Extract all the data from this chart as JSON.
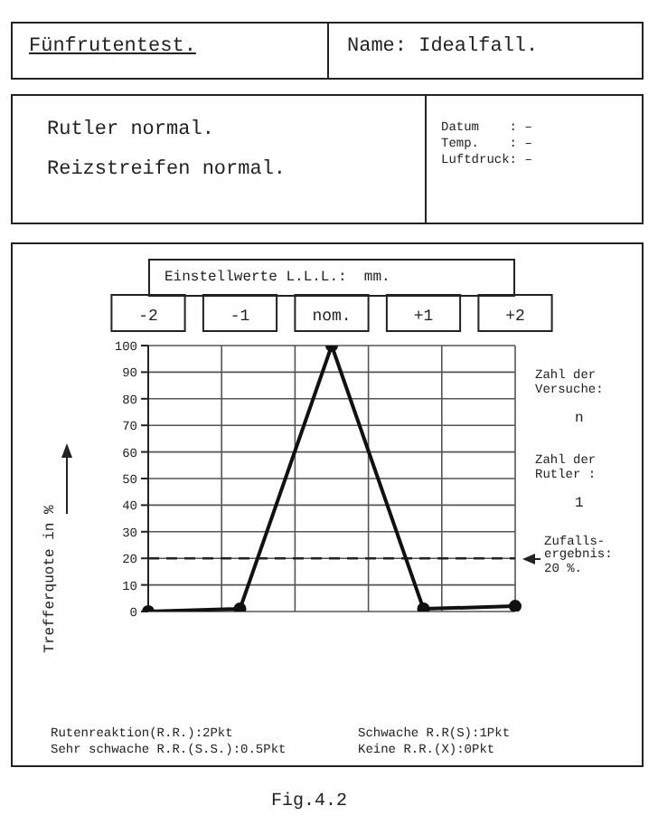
{
  "chart_data": {
    "type": "line",
    "title": "Fünfrutentest.",
    "subtitle": "Name: Idealfall.",
    "xlabel": "Einstellwerte L.L.L.:  mm.",
    "ylabel": "Trefferquote in %",
    "categories": [
      "-2",
      "-1",
      "nom.",
      "+1",
      "+2"
    ],
    "values": [
      0,
      1,
      100,
      1,
      2
    ],
    "color": "#111111",
    "marker": "circle",
    "line_style": "solid",
    "ylim": [
      0,
      100
    ],
    "yticks": [
      0,
      10,
      20,
      30,
      40,
      50,
      60,
      70,
      80,
      90,
      100
    ],
    "grid": true,
    "ref_lines": [
      {
        "axis": "y",
        "value": 20,
        "label": "Zufalls-ergebnis: 20 %.",
        "line_style": "dashed",
        "color": "#222222"
      }
    ],
    "annotations": [
      "Rutler normal.",
      "Reizstreifen normal.",
      "Datum    : –",
      "Temp.    : –",
      "Luftdruck: –",
      "Zahl der Versuche:",
      "n",
      "Zahl der Rutler :",
      "1",
      "Rutenreaktion(R.R.):2Pkt",
      "Sehr schwache R.R.(S.S.):0.5Pkt",
      "Schwache R.R(S):1Pkt",
      "Keine R.R.(X):0Pkt",
      "Fig.4.2"
    ]
  }
}
